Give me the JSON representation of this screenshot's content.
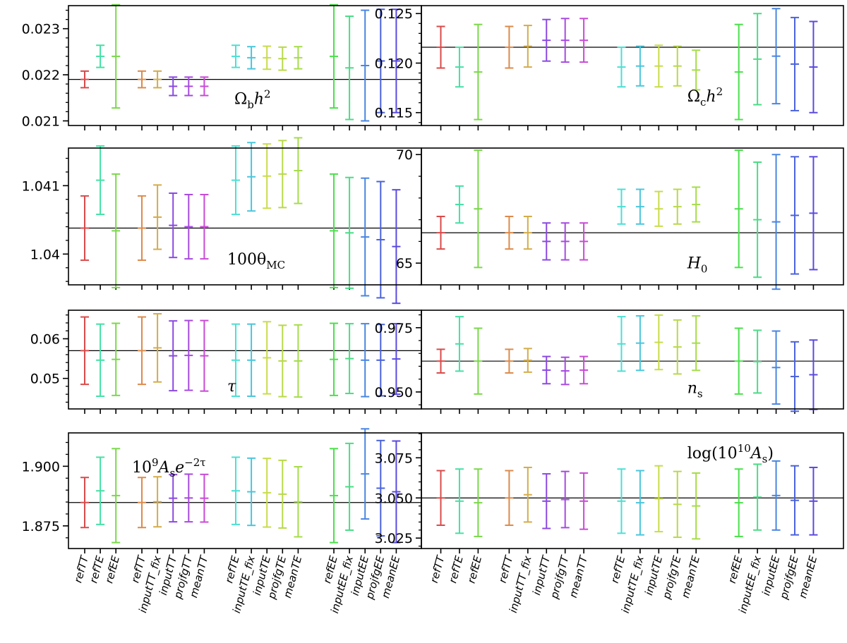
{
  "chart_data": {
    "type": "errorbar",
    "categories": [
      "refTT",
      "refTE",
      "refEE",
      "refTT",
      "inputTT_fix",
      "inputTT",
      "projfgTT",
      "meanTT",
      "refTE",
      "inputTE_fix",
      "inputTE",
      "projfgTE",
      "meanTE",
      "refEE",
      "inputEE_fix",
      "inputEE",
      "projfgEE",
      "meanEE"
    ],
    "colors": [
      "#d94a4a",
      "#45e0a6",
      "#7ad84a",
      "#dc8a4a",
      "#d4ac4a",
      "#8a4ae0",
      "#a64ae0",
      "#c94ad6",
      "#4ae0d4",
      "#4ac6dc",
      "#c9dc4a",
      "#b9d84a",
      "#a6dc4a",
      "#4ae04a",
      "#4adc86",
      "#4a86e0",
      "#4a62dc",
      "#5a4ae0"
    ],
    "panels": [
      {
        "id": "omegabh2",
        "label_main": "Ω",
        "label_sub": "b",
        "label_rest": "h",
        "label_sup": "2",
        "ylim": [
          0.0209,
          0.0235
        ],
        "yticks": [
          0.021,
          0.022,
          0.023
        ],
        "yticklabels": [
          "0.021",
          "0.022",
          "0.023"
        ],
        "ref": 0.0219,
        "center": [
          0.0219,
          0.0224,
          0.0224,
          0.0219,
          0.0219,
          0.02175,
          0.02175,
          0.02175,
          0.0224,
          0.02237,
          0.02237,
          0.02235,
          0.02237,
          0.0224,
          0.02215,
          0.0222,
          0.0223,
          0.0223
        ],
        "err": [
          0.00018,
          0.00024,
          0.00112,
          0.00018,
          0.00018,
          0.0002,
          0.0002,
          0.0002,
          0.00024,
          0.00024,
          0.00025,
          0.00025,
          0.00024,
          0.00112,
          0.00112,
          0.0012,
          0.00112,
          0.00112
        ]
      },
      {
        "id": "omegach2",
        "label_main": "Ω",
        "label_sub": "c",
        "label_rest": "h",
        "label_sup": "2",
        "ylim": [
          0.1137,
          0.1258
        ],
        "yticks": [
          0.115,
          0.12,
          0.125
        ],
        "yticklabels": [
          "0.115",
          "0.120",
          "0.125"
        ],
        "ref": 0.1216,
        "center": [
          0.1216,
          0.1196,
          0.1191,
          0.1216,
          0.1217,
          0.1223,
          0.1223,
          0.1223,
          0.1196,
          0.1197,
          0.1197,
          0.1197,
          0.1193,
          0.1191,
          0.1204,
          0.1207,
          0.1199,
          0.1196
        ],
        "err": [
          0.0021,
          0.002,
          0.0048,
          0.0021,
          0.0021,
          0.0021,
          0.0022,
          0.0022,
          0.002,
          0.002,
          0.0021,
          0.002,
          0.002,
          0.0048,
          0.0046,
          0.0048,
          0.0047,
          0.0046
        ]
      },
      {
        "id": "theta",
        "label_main": "100θ",
        "label_sub": "MC",
        "ylim": [
          1.03955,
          1.04155
        ],
        "yticks": [
          1.04,
          1.041
        ],
        "yticklabels": [
          "1.04",
          "1.041"
        ],
        "ref": 1.04038,
        "center": [
          1.04038,
          1.04108,
          1.04034,
          1.04038,
          1.04054,
          1.04042,
          1.0404,
          1.0404,
          1.04108,
          1.04113,
          1.04114,
          1.04117,
          1.04122,
          1.04034,
          1.04031,
          1.04025,
          1.04021,
          1.04011
        ],
        "err": [
          0.00047,
          0.0005,
          0.00083,
          0.00047,
          0.00047,
          0.00047,
          0.00047,
          0.00047,
          0.0005,
          0.0005,
          0.00047,
          0.00049,
          0.00048,
          0.00083,
          0.00081,
          0.00086,
          0.00085,
          0.00083
        ]
      },
      {
        "id": "H0",
        "label_main": "H",
        "label_sub": "0",
        "ylim": [
          64.0,
          70.3
        ],
        "yticks": [
          65,
          70
        ],
        "yticklabels": [
          "65",
          "70"
        ],
        "ref": 66.4,
        "center": [
          66.4,
          67.7,
          67.5,
          66.4,
          66.4,
          66.0,
          66.0,
          66.0,
          67.6,
          67.6,
          67.5,
          67.6,
          67.7,
          67.5,
          67.0,
          66.9,
          67.2,
          67.3
        ],
        "err": [
          0.75,
          0.85,
          2.7,
          0.75,
          0.75,
          0.85,
          0.85,
          0.85,
          0.8,
          0.8,
          0.8,
          0.8,
          0.8,
          2.7,
          2.65,
          3.1,
          2.7,
          2.6
        ]
      },
      {
        "id": "tau",
        "label_main": "τ",
        "ylim": [
          0.0423,
          0.0672
        ],
        "yticks": [
          0.05,
          0.06
        ],
        "yticklabels": [
          "0.05",
          "0.06"
        ],
        "ref": 0.057,
        "center": [
          0.057,
          0.0546,
          0.0548,
          0.057,
          0.0577,
          0.0557,
          0.0558,
          0.0557,
          0.0546,
          0.0546,
          0.0552,
          0.0544,
          0.0544,
          0.0548,
          0.055,
          0.0546,
          0.0546,
          0.0549
        ],
        "err": [
          0.0085,
          0.0091,
          0.0091,
          0.0085,
          0.0086,
          0.0088,
          0.0088,
          0.0089,
          0.0091,
          0.0091,
          0.0091,
          0.009,
          0.0091,
          0.0091,
          0.0088,
          0.0092,
          0.009,
          0.0089
        ]
      },
      {
        "id": "ns",
        "label_main": "n",
        "label_sub": "s",
        "ylim": [
          0.9434,
          0.9818
        ],
        "yticks": [
          0.95,
          0.975
        ],
        "yticklabels": [
          "0.950",
          "0.975"
        ],
        "ref": 0.962,
        "center": [
          0.962,
          0.9687,
          0.962,
          0.962,
          0.9623,
          0.9585,
          0.9582,
          0.9585,
          0.9687,
          0.969,
          0.9693,
          0.9675,
          0.969,
          0.962,
          0.9618,
          0.9595,
          0.956,
          0.9567
        ],
        "err": [
          0.0046,
          0.0106,
          0.0128,
          0.0046,
          0.0046,
          0.0053,
          0.0053,
          0.0053,
          0.0106,
          0.0106,
          0.0106,
          0.0105,
          0.0106,
          0.0128,
          0.0122,
          0.0142,
          0.0135,
          0.0135
        ]
      },
      {
        "id": "Ase2tau",
        "label_main": "10",
        "label_sup": "9",
        "label_rest": "A",
        "label_sub": "s",
        "label_tail": "e",
        "label_tail_sup": "−2τ",
        "ylim": [
          1.8655,
          1.914
        ],
        "yticks": [
          1.875,
          1.9
        ],
        "yticklabels": [
          "1.875",
          "1.900"
        ],
        "ref": 1.8848,
        "center": [
          1.8848,
          1.8897,
          1.8877,
          1.8848,
          1.8851,
          1.8866,
          1.8867,
          1.8866,
          1.8897,
          1.8893,
          1.8889,
          1.8883,
          1.8851,
          1.8877,
          1.8914,
          1.8968,
          1.8908,
          1.8893
        ],
        "err": [
          0.0105,
          0.0141,
          0.0197,
          0.0105,
          0.0105,
          0.0099,
          0.01,
          0.01,
          0.0141,
          0.0141,
          0.0144,
          0.0142,
          0.0147,
          0.0197,
          0.0182,
          0.0189,
          0.02,
          0.0213
        ]
      },
      {
        "id": "logAs",
        "label_main": "log(10",
        "label_sup": "10",
        "label_rest": "A",
        "label_sub": "s",
        "label_tail": ")",
        "ylim": [
          3.0185,
          3.0905
        ],
        "yticks": [
          3.025,
          3.05,
          3.075
        ],
        "yticklabels": [
          "3.025",
          "3.050",
          "3.075"
        ],
        "ref": 3.05,
        "center": [
          3.05,
          3.048,
          3.047,
          3.05,
          3.052,
          3.048,
          3.049,
          3.048,
          3.048,
          3.047,
          3.0495,
          3.046,
          3.045,
          3.047,
          3.0505,
          3.0515,
          3.0485,
          3.048
        ],
        "err": [
          0.017,
          0.02,
          0.021,
          0.017,
          0.017,
          0.017,
          0.0175,
          0.0175,
          0.02,
          0.02,
          0.0205,
          0.0205,
          0.0205,
          0.021,
          0.0205,
          0.0215,
          0.0215,
          0.021
        ]
      }
    ]
  }
}
